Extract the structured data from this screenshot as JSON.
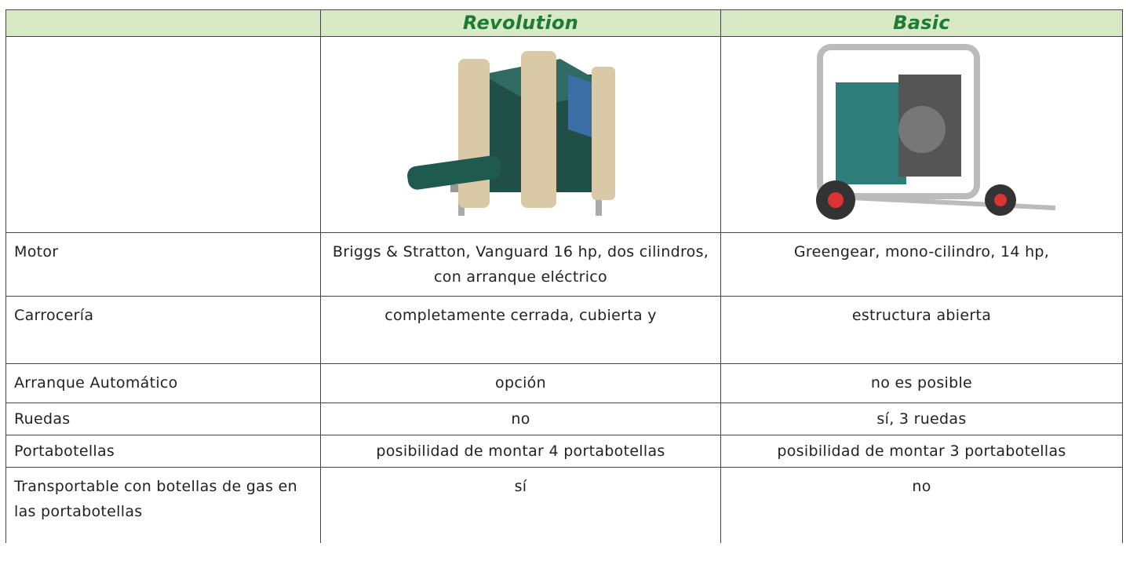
{
  "header": {
    "columns": [
      "Revolution",
      "Basic"
    ]
  },
  "rows": [
    [
      "Motor",
      "Briggs & Stratton, Vanguard 16 hp, dos cilindros, con arranque eléctrico",
      "Greengear, mono-cilindro, 14 hp,"
    ],
    [
      "Carrocería",
      "completamente cerrada, cubierta y",
      "estructura abierta"
    ],
    [
      "Arranque Automático",
      "opción",
      "no es posible"
    ],
    [
      "Ruedas",
      "no",
      "sí, 3 ruedas"
    ],
    [
      "Portabotellas",
      "posibilidad de montar 4 portabotellas",
      "posibilidad de montar 3 portabotellas"
    ],
    [
      "Transportable con botellas de gas en las portabotellas",
      "sí",
      "no"
    ]
  ]
}
